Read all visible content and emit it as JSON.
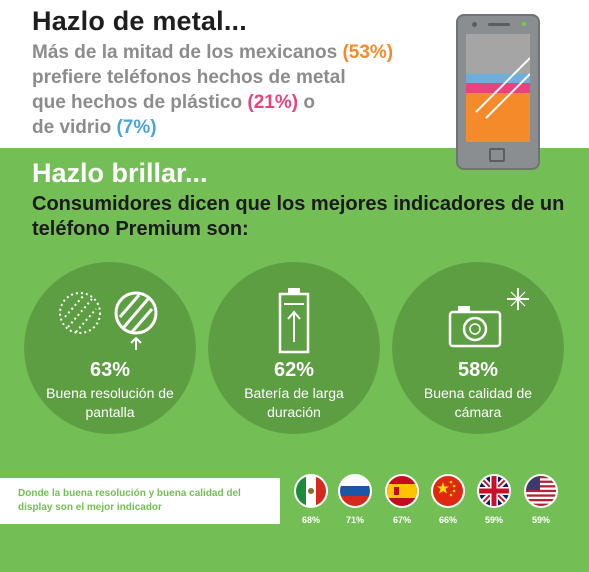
{
  "metal": {
    "title": "Hazlo de metal...",
    "line1_text": "Más de la mitad de los mexicanos",
    "metal_pct": "(53%)",
    "line2_text": "prefiere teléfonos hechos de metal",
    "line3_text": "que hechos de plástico",
    "plastic_pct": "(21%)",
    "line3_tail": "o",
    "line4_text": "de vidrio",
    "glass_pct": "(7%)"
  },
  "brillar": {
    "title": "Hazlo brillar...",
    "subtitle": "Consumidores dicen que los mejores indicadores de un teléfono Premium son:",
    "indicators": [
      {
        "pct": "63%",
        "label": "Buena resolución de pantalla",
        "icon": "screen-resolution-icon"
      },
      {
        "pct": "62%",
        "label": "Batería de larga duración",
        "icon": "battery-icon"
      },
      {
        "pct": "58%",
        "label": "Buena calidad de cámara",
        "icon": "camera-icon"
      }
    ]
  },
  "display_banner": {
    "text": "Donde la buena resolución y buena calidad del display son el mejor indicador"
  },
  "flags": [
    {
      "country": "mexico",
      "icon": "mexico-flag-icon",
      "pct": "68%"
    },
    {
      "country": "russia",
      "icon": "russia-flag-icon",
      "pct": "71%"
    },
    {
      "country": "spain",
      "icon": "spain-flag-icon",
      "pct": "67%"
    },
    {
      "country": "china",
      "icon": "china-flag-icon",
      "pct": "66%"
    },
    {
      "country": "uk",
      "icon": "uk-flag-icon",
      "pct": "59%"
    },
    {
      "country": "usa",
      "icon": "usa-flag-icon",
      "pct": "59%"
    }
  ],
  "colors": {
    "green": "#74be56",
    "dark_green": "#5e9e43",
    "orange": "#f58a2a",
    "pink": "#e8437d",
    "blue": "#4aa3d9",
    "gray": "#8c8c8c"
  }
}
